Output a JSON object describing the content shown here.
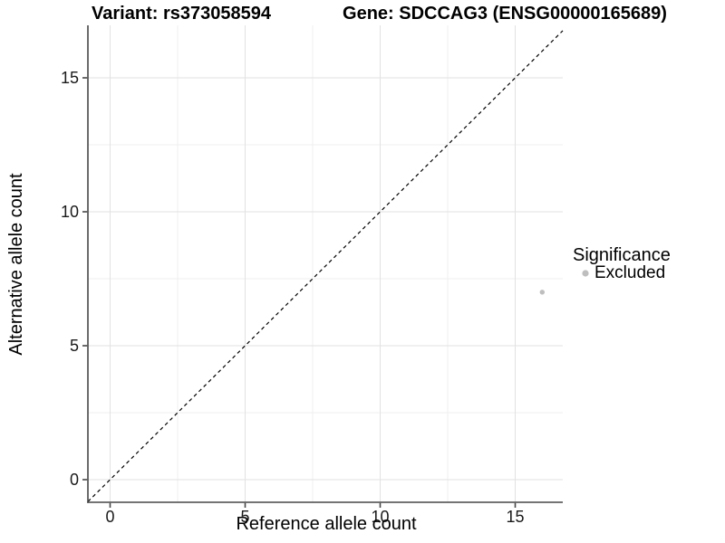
{
  "titles": {
    "variant": "Variant: rs373058594",
    "gene": "Gene: SDCCAG3 (ENSG00000165689)"
  },
  "axes": {
    "x": {
      "label": "Reference allele count",
      "ticks": [
        "0",
        "5",
        "10",
        "15"
      ]
    },
    "y": {
      "label": "Alternative allele count",
      "ticks": [
        "0",
        "5",
        "10",
        "15"
      ]
    }
  },
  "legend": {
    "title": "Significance",
    "items": [
      {
        "label": "Excluded",
        "color": "#bebebe"
      }
    ]
  },
  "colors": {
    "point": "#bebebe",
    "grid_major": "#e2e2e2",
    "grid_minor": "#efefef",
    "axis_line": "#464646",
    "reference_line": "#000000"
  },
  "chart_data": {
    "type": "scatter",
    "title": "Variant: rs373058594  /  Gene: SDCCAG3 (ENSG00000165689)",
    "xlabel": "Reference allele count",
    "ylabel": "Alternative allele count",
    "xlim": [
      -0.8,
      16.8
    ],
    "ylim": [
      -0.8,
      16.8
    ],
    "x_ticks": [
      0,
      5,
      10,
      15
    ],
    "y_ticks": [
      0,
      5,
      10,
      15
    ],
    "grid": true,
    "legend_position": "right",
    "reference_line": {
      "type": "identity y=x",
      "style": "dashed",
      "color": "#000000"
    },
    "series": [
      {
        "name": "Excluded",
        "color": "#bebebe",
        "points": [
          {
            "x": 16,
            "y": 7
          }
        ]
      }
    ]
  }
}
